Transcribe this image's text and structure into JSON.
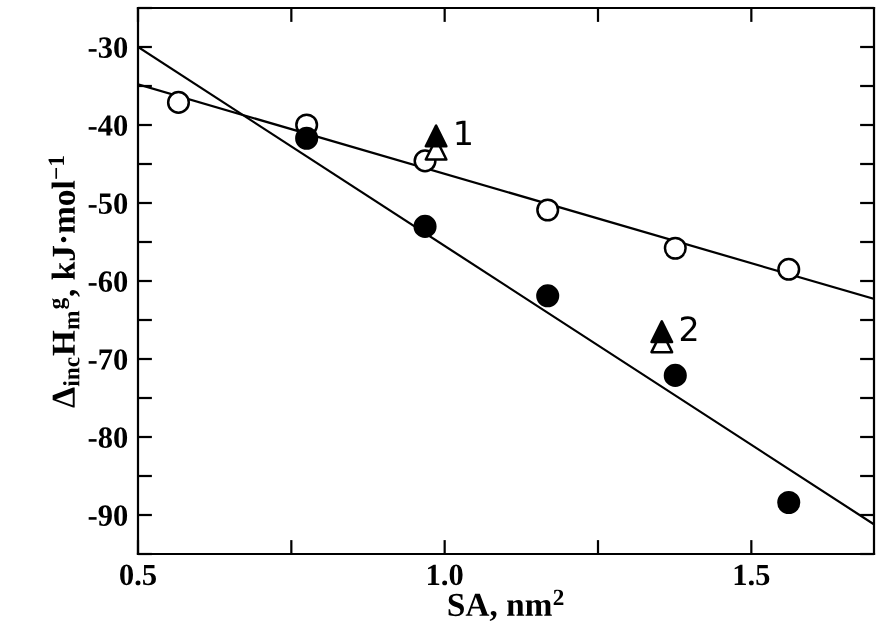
{
  "chart_data": {
    "type": "scatter",
    "xlabel": "SA, nm$^{2}$",
    "ylabel": "Δ$_{inc}$H$_{m}$$^{g}$, kJ·mol$^{−1}$",
    "xlim": [
      0.5,
      1.7
    ],
    "ylim": [
      -95,
      -25
    ],
    "xticks": [
      0.5,
      {
        "value": 0.75,
        "label": null
      },
      {
        "value": 1.0,
        "label": "1.0"
      },
      {
        "value": 1.25,
        "label": null
      },
      1.5
    ],
    "yticks": [
      {
        "value": -95,
        "label": null
      },
      -90,
      {
        "value": -85,
        "label": null
      },
      -80,
      {
        "value": -75,
        "label": null
      },
      -70,
      {
        "value": -65,
        "label": null
      },
      -60,
      {
        "value": -55,
        "label": null
      },
      -50,
      {
        "value": -45,
        "label": null
      },
      -40,
      {
        "value": -35,
        "label": null
      },
      -30,
      {
        "value": -25,
        "label": null
      }
    ],
    "grid": false,
    "legend": false,
    "series": [
      {
        "color": "#ffffff",
        "marker": "circle",
        "x": [
          0.566,
          0.775,
          0.968,
          1.168,
          1.376,
          1.561
        ],
        "values": [
          -37.1,
          -40.0,
          -44.6,
          -50.9,
          -55.8,
          -58.5
        ]
      },
      {
        "color": "#000000",
        "marker": "circle",
        "x": [
          0.775,
          0.968,
          1.168,
          1.376,
          1.561
        ],
        "values": [
          -41.7,
          -53.0,
          -61.9,
          -72.1,
          -88.4
        ]
      },
      {
        "color": "#ffffff",
        "marker": "triangle",
        "x": [
          0.986,
          1.354
        ],
        "values": [
          -43.1,
          -67.8
        ]
      },
      {
        "color": "#000000",
        "marker": "triangle",
        "x": [
          0.986,
          1.354
        ],
        "values": [
          -41.4,
          -66.5
        ]
      },
      {
        "type": "line",
        "color": "#000000",
        "marker": "none",
        "x": [
          0.5,
          1.7
        ],
        "values": [
          -34.8,
          -62.3
        ]
      },
      {
        "type": "line",
        "color": "#000000",
        "marker": "none",
        "x": [
          0.5,
          1.7
        ],
        "values": [
          -30.0,
          -91.2
        ]
      }
    ],
    "annotations": [
      {
        "text": "1",
        "x": 0.986,
        "y": -41.4
      },
      {
        "text": "2",
        "x": 1.354,
        "y": -66.5
      }
    ]
  }
}
